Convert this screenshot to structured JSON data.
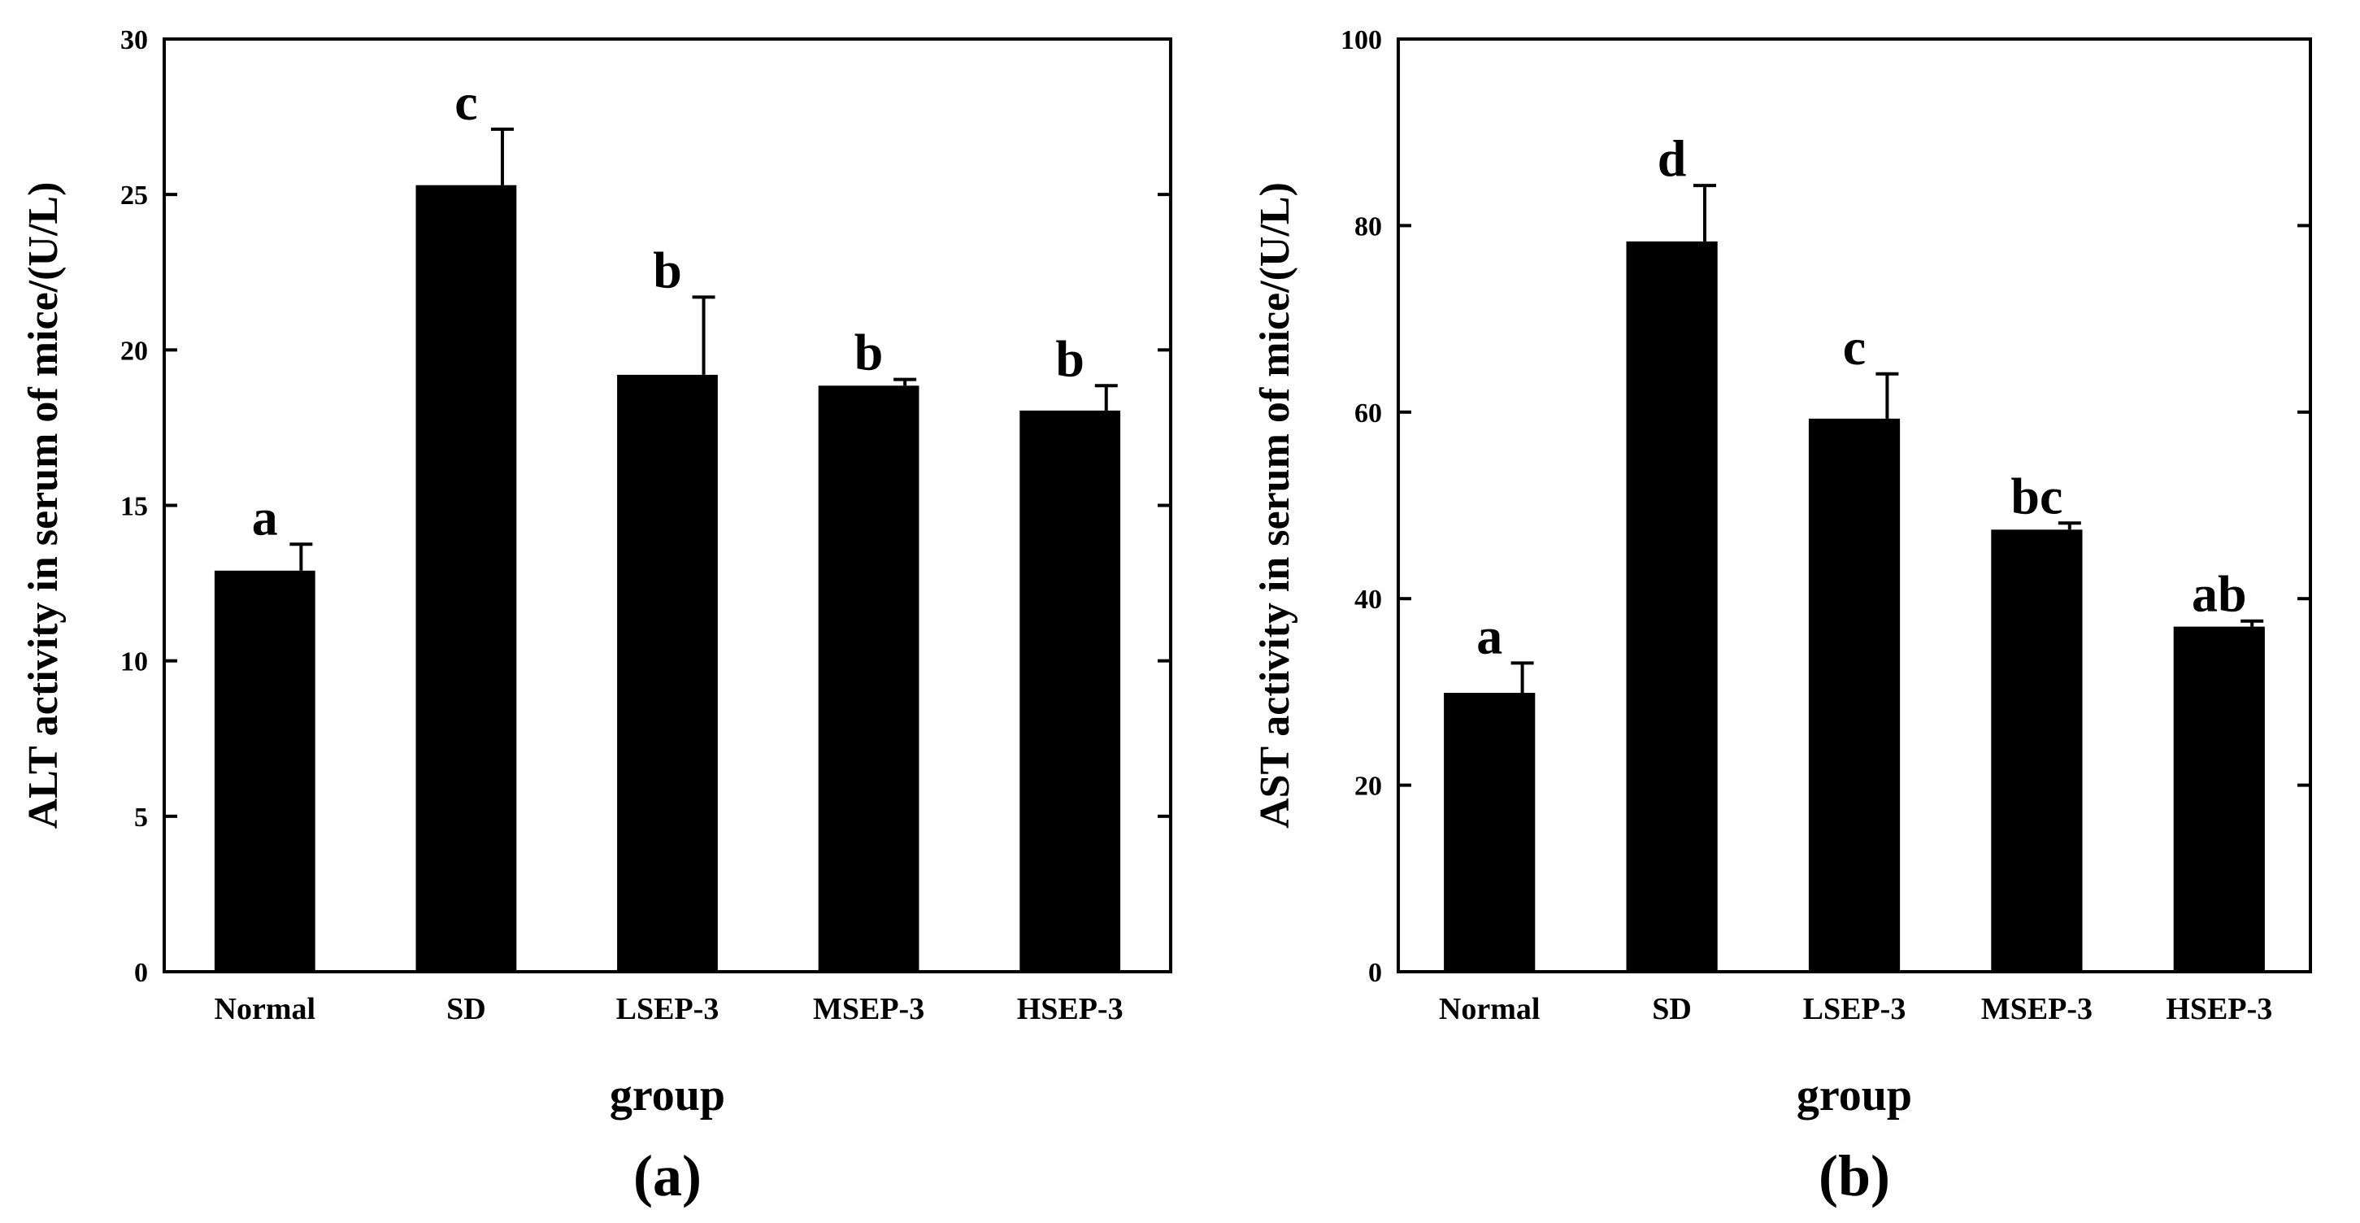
{
  "chart_data": [
    {
      "type": "bar",
      "panel": "(a)",
      "title": "",
      "xlabel": "group",
      "ylabel": "ALT activity in serum of mice/(U/L)",
      "ylim": [
        0,
        30
      ],
      "yticks": [
        0,
        5,
        10,
        15,
        20,
        25,
        30
      ],
      "categories": [
        "Normal",
        "SD",
        "LSEP-3",
        "MSEP-3",
        "HSEP-3"
      ],
      "values": [
        12.9,
        25.3,
        19.2,
        18.85,
        18.05
      ],
      "errors": [
        0.85,
        1.8,
        2.5,
        0.2,
        0.8
      ],
      "significance": [
        "a",
        "c",
        "b",
        "b",
        "b"
      ]
    },
    {
      "type": "bar",
      "panel": "(b)",
      "title": "",
      "xlabel": "group",
      "ylabel": "AST activity in serum of mice/(U/L)",
      "ylim": [
        0,
        100
      ],
      "yticks": [
        0,
        20,
        40,
        60,
        80,
        100
      ],
      "categories": [
        "Normal",
        "SD",
        "LSEP-3",
        "MSEP-3",
        "HSEP-3"
      ],
      "values": [
        29.9,
        78.3,
        59.3,
        47.4,
        37.0
      ],
      "errors": [
        3.2,
        6.0,
        4.8,
        0.7,
        0.6
      ],
      "significance": [
        "a",
        "d",
        "c",
        "bc",
        "ab"
      ]
    }
  ],
  "colors": {
    "bar": "#000000",
    "axis": "#000000",
    "background": "#ffffff"
  }
}
